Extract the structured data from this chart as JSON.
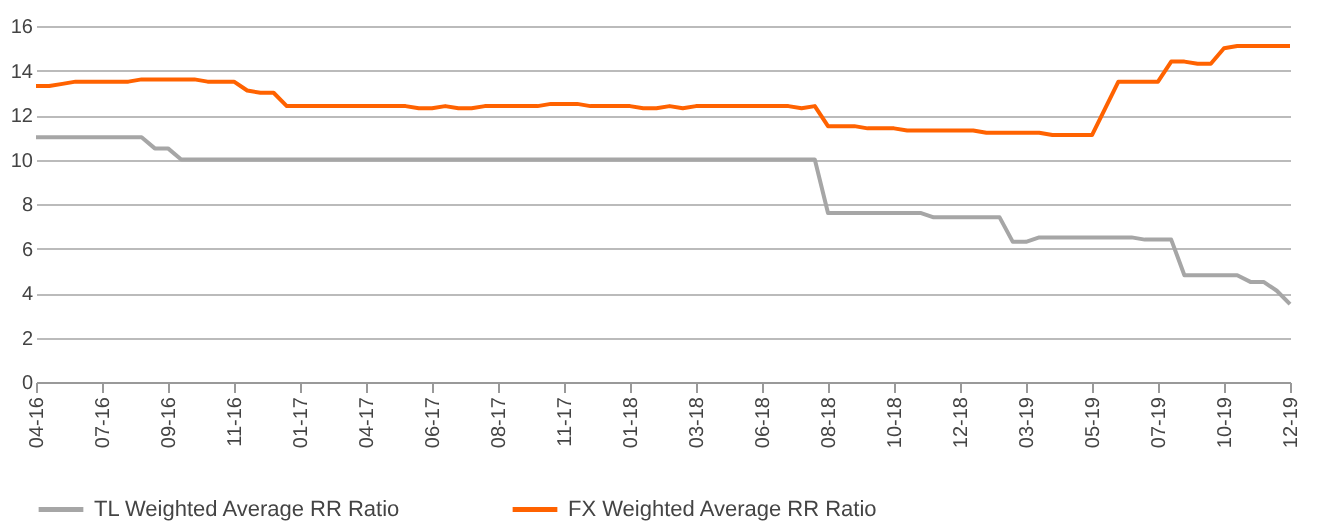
{
  "chart_data": {
    "type": "line",
    "categories": [
      "04-16",
      null,
      null,
      null,
      null,
      "07-16",
      null,
      null,
      null,
      null,
      "09-16",
      null,
      null,
      null,
      null,
      "11-16",
      null,
      null,
      null,
      null,
      "01-17",
      null,
      null,
      null,
      null,
      "04-17",
      null,
      null,
      null,
      null,
      "06-17",
      null,
      null,
      null,
      null,
      "08-17",
      null,
      null,
      null,
      null,
      "11-17",
      null,
      null,
      null,
      null,
      "01-18",
      null,
      null,
      null,
      null,
      "03-18",
      null,
      null,
      null,
      null,
      "06-18",
      null,
      null,
      null,
      null,
      "08-18",
      null,
      null,
      null,
      null,
      "10-18",
      null,
      null,
      null,
      null,
      "12-18",
      null,
      null,
      null,
      null,
      "03-19",
      null,
      null,
      null,
      null,
      "05-19",
      null,
      null,
      null,
      null,
      "07-19",
      null,
      null,
      null,
      null,
      "10-19",
      null,
      null,
      null,
      null,
      "12-19"
    ],
    "series": [
      {
        "name": "TL Weighted Average RR Ratio",
        "color": "#a6a6a6",
        "values": [
          11,
          11,
          11,
          11,
          11,
          11,
          11,
          11,
          11,
          10.5,
          10.5,
          10,
          10,
          10,
          10,
          10,
          10,
          10,
          10,
          10,
          10,
          10,
          10,
          10,
          10,
          10,
          10,
          10,
          10,
          10,
          10,
          10,
          10,
          10,
          10,
          10,
          10,
          10,
          10,
          10,
          10,
          10,
          10,
          10,
          10,
          10,
          10,
          10,
          10,
          10,
          10,
          10,
          10,
          10,
          10,
          10,
          10,
          10,
          10,
          10,
          7.6,
          7.6,
          7.6,
          7.6,
          7.6,
          7.6,
          7.6,
          7.6,
          7.4,
          7.4,
          7.4,
          7.4,
          7.4,
          7.4,
          6.3,
          6.3,
          6.5,
          6.5,
          6.5,
          6.5,
          6.5,
          6.5,
          6.5,
          6.5,
          6.4,
          6.4,
          6.4,
          4.8,
          4.8,
          4.8,
          4.8,
          4.8,
          4.5,
          4.5,
          4.1,
          3.5
        ]
      },
      {
        "name": "FX Weighted Average RR Ratio",
        "color": "#ff6200",
        "values": [
          13.3,
          13.3,
          13.4,
          13.5,
          13.5,
          13.5,
          13.5,
          13.5,
          13.6,
          13.6,
          13.6,
          13.6,
          13.6,
          13.5,
          13.5,
          13.5,
          13.1,
          13.0,
          13.0,
          12.4,
          12.4,
          12.4,
          12.4,
          12.4,
          12.4,
          12.4,
          12.4,
          12.4,
          12.4,
          12.3,
          12.3,
          12.4,
          12.3,
          12.3,
          12.4,
          12.4,
          12.4,
          12.4,
          12.4,
          12.5,
          12.5,
          12.5,
          12.4,
          12.4,
          12.4,
          12.4,
          12.3,
          12.3,
          12.4,
          12.3,
          12.4,
          12.4,
          12.4,
          12.4,
          12.4,
          12.4,
          12.4,
          12.4,
          12.3,
          12.4,
          11.5,
          11.5,
          11.5,
          11.4,
          11.4,
          11.4,
          11.3,
          11.3,
          11.3,
          11.3,
          11.3,
          11.3,
          11.2,
          11.2,
          11.2,
          11.2,
          11.2,
          11.1,
          11.1,
          11.1,
          11.1,
          12.3,
          13.5,
          13.5,
          13.5,
          13.5,
          14.4,
          14.4,
          14.3,
          14.3,
          15.0,
          15.1,
          15.1,
          15.1,
          15.1,
          15.1
        ]
      }
    ],
    "ylim": [
      0,
      16
    ],
    "yticks": [
      0,
      2,
      4,
      6,
      8,
      10,
      12,
      14,
      16
    ],
    "grid": "y",
    "legend": "bottom",
    "marker": "none",
    "line_style": "solid"
  }
}
